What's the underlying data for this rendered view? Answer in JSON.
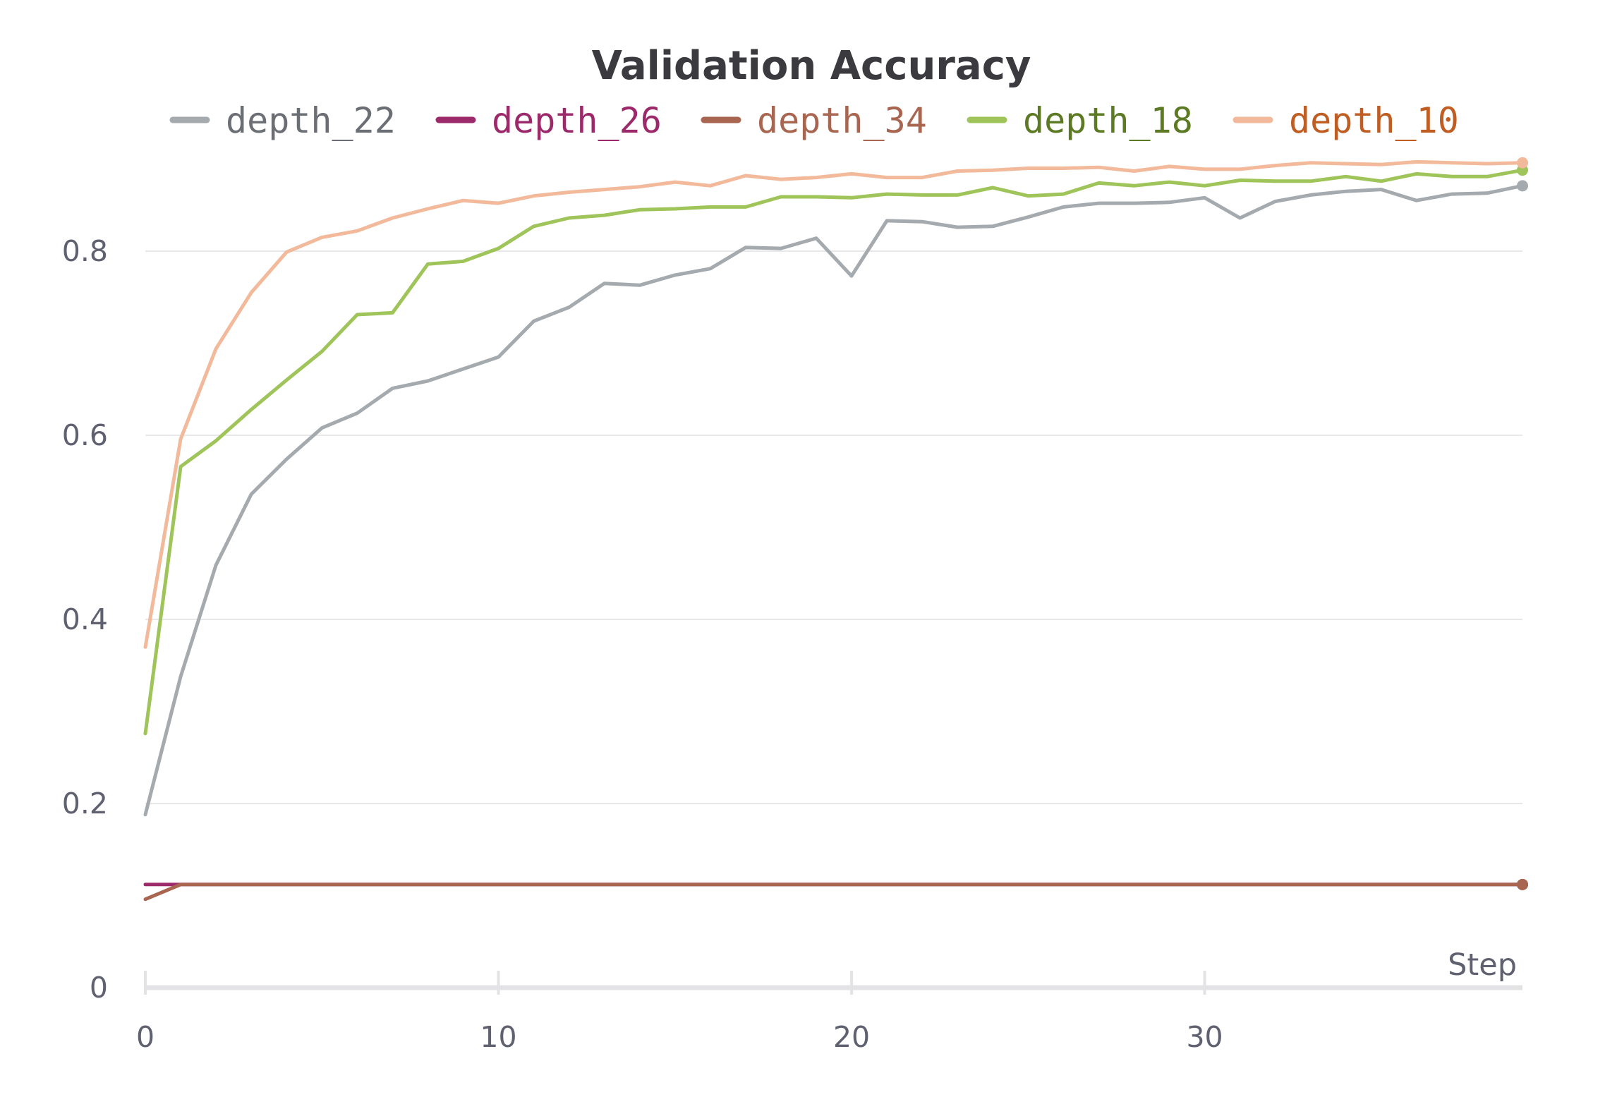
{
  "chart_data": {
    "type": "line",
    "title": "Validation Accuracy",
    "xlabel": "Step",
    "ylabel": "",
    "xlim": [
      0,
      39
    ],
    "ylim": [
      0,
      0.9
    ],
    "yticks": [
      0,
      0.2,
      0.4,
      0.6,
      0.8
    ],
    "ytick_labels": [
      "0",
      "0.2",
      "0.4",
      "0.6",
      "0.8"
    ],
    "xticks": [
      0,
      10,
      20,
      30
    ],
    "xtick_labels": [
      "0",
      "10",
      "20",
      "30"
    ],
    "grid": true,
    "legend_position": "top",
    "series": [
      {
        "name": "depth_22",
        "color": "#a4aaae",
        "label_color": "#6b6e74",
        "values": [
          0.188,
          0.338,
          0.459,
          0.536,
          0.574,
          0.608,
          0.624,
          0.651,
          0.659,
          0.672,
          0.685,
          0.724,
          0.739,
          0.765,
          0.763,
          0.774,
          0.781,
          0.804,
          0.803,
          0.814,
          0.773,
          0.833,
          0.832,
          0.826,
          0.827,
          0.837,
          0.848,
          0.852,
          0.852,
          0.853,
          0.858,
          0.836,
          0.854,
          0.861,
          0.865,
          0.867,
          0.855,
          0.862,
          0.863,
          0.871
        ]
      },
      {
        "name": "depth_26",
        "color": "#9c2a6b",
        "label_color": "#9c2a6b",
        "values": [
          0.112,
          0.112,
          0.112,
          0.112,
          0.112,
          0.112,
          0.112,
          0.112,
          0.112,
          0.112,
          0.112,
          0.112,
          0.112,
          0.112,
          0.112,
          0.112,
          0.112,
          0.112,
          0.112,
          0.112,
          0.112,
          0.112,
          0.112,
          0.112,
          0.112,
          0.112,
          0.112,
          0.112,
          0.112,
          0.112,
          0.112,
          0.112,
          0.112,
          0.112,
          0.112,
          0.112,
          0.112,
          0.112,
          0.112,
          0.112
        ]
      },
      {
        "name": "depth_34",
        "color": "#a86651",
        "label_color": "#a86651",
        "values": [
          0.096,
          0.112,
          0.112,
          0.112,
          0.112,
          0.112,
          0.112,
          0.112,
          0.112,
          0.112,
          0.112,
          0.112,
          0.112,
          0.112,
          0.112,
          0.112,
          0.112,
          0.112,
          0.112,
          0.112,
          0.112,
          0.112,
          0.112,
          0.112,
          0.112,
          0.112,
          0.112,
          0.112,
          0.112,
          0.112,
          0.112,
          0.112,
          0.112,
          0.112,
          0.112,
          0.112,
          0.112,
          0.112,
          0.112,
          0.112
        ]
      },
      {
        "name": "depth_18",
        "color": "#9ec45a",
        "label_color": "#5c7a24",
        "values": [
          0.276,
          0.566,
          0.594,
          0.628,
          0.66,
          0.691,
          0.731,
          0.733,
          0.786,
          0.789,
          0.803,
          0.827,
          0.836,
          0.839,
          0.845,
          0.846,
          0.848,
          0.848,
          0.859,
          0.859,
          0.858,
          0.862,
          0.861,
          0.861,
          0.869,
          0.86,
          0.862,
          0.874,
          0.871,
          0.875,
          0.871,
          0.877,
          0.876,
          0.876,
          0.881,
          0.876,
          0.884,
          0.881,
          0.881,
          0.888
        ]
      },
      {
        "name": "depth_10",
        "color": "#f2b99b",
        "label_color": "#bf5d22",
        "values": [
          0.37,
          0.596,
          0.694,
          0.755,
          0.799,
          0.815,
          0.822,
          0.836,
          0.846,
          0.855,
          0.852,
          0.86,
          0.864,
          0.867,
          0.87,
          0.875,
          0.871,
          0.882,
          0.878,
          0.88,
          0.884,
          0.88,
          0.88,
          0.887,
          0.888,
          0.89,
          0.89,
          0.891,
          0.887,
          0.892,
          0.889,
          0.889,
          0.893,
          0.896,
          0.895,
          0.894,
          0.897,
          0.896,
          0.895,
          0.896
        ]
      }
    ]
  }
}
